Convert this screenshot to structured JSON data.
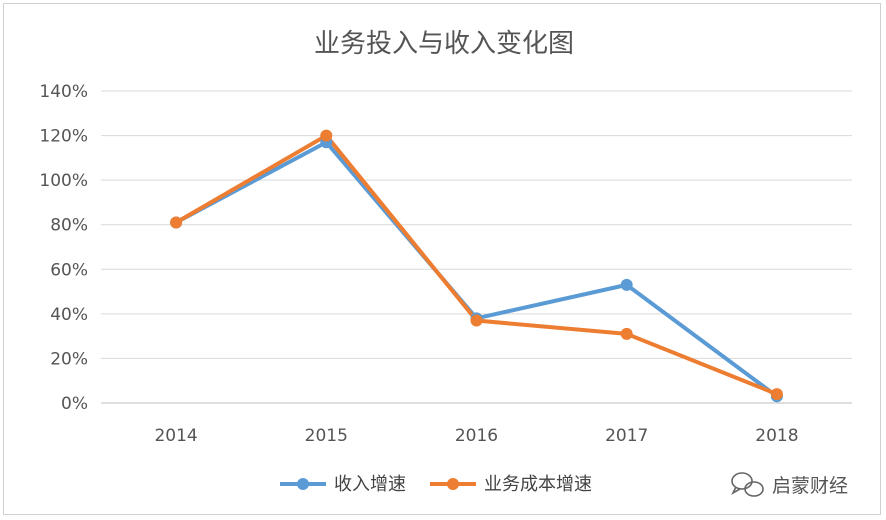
{
  "chart_data": {
    "type": "line",
    "title": "业务投入与收入变化图",
    "categories": [
      "2014",
      "2015",
      "2016",
      "2017",
      "2018"
    ],
    "y_ticks": [
      "0%",
      "20%",
      "40%",
      "60%",
      "80%",
      "100%",
      "120%",
      "140%"
    ],
    "ylim": [
      0,
      1.4
    ],
    "ytick_step": 0.2,
    "series": [
      {
        "name": "收入增速",
        "color": "#5b9bd5",
        "values": [
          0.81,
          1.17,
          0.38,
          0.53,
          0.03
        ]
      },
      {
        "name": "业务成本增速",
        "color": "#ed7d31",
        "values": [
          0.81,
          1.2,
          0.37,
          0.31,
          0.04
        ]
      }
    ],
    "legend_position": "bottom-center",
    "grid": true
  },
  "watermark": {
    "text": "启蒙财经",
    "icon": "wechat-icon"
  }
}
